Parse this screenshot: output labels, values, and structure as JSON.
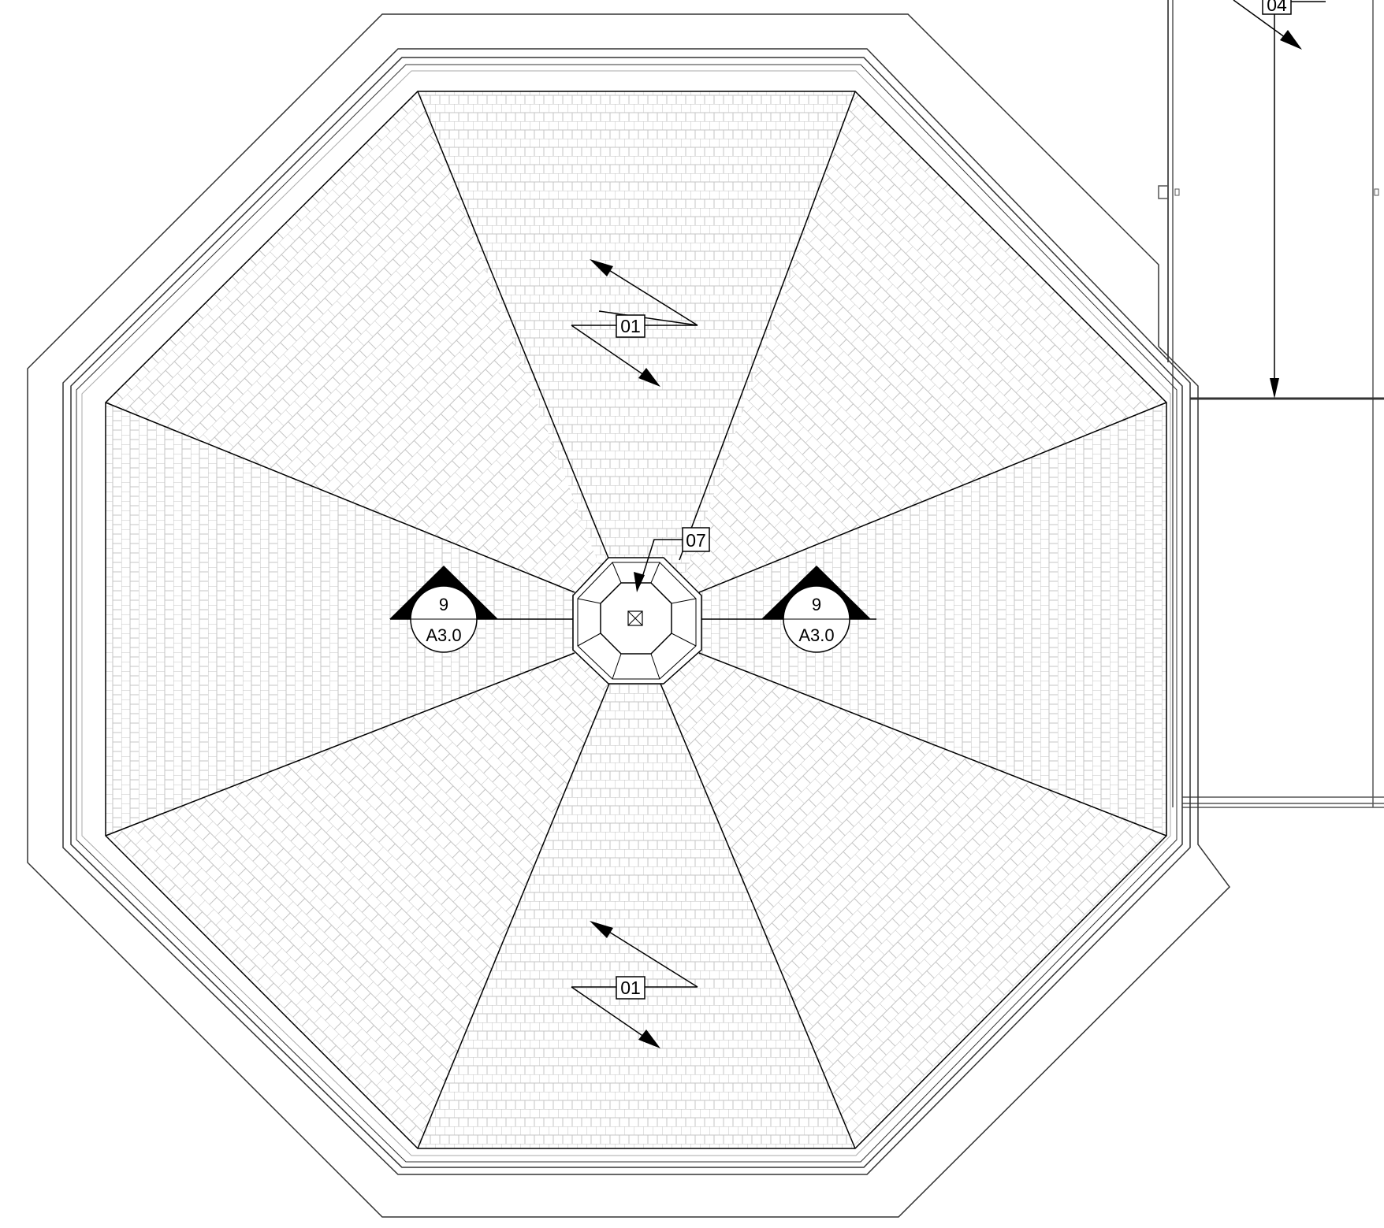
{
  "drawing": {
    "type": "octagonal roof plan",
    "roof_pattern": "shingle",
    "line_color": "#000000",
    "hatch_color": "#b8b8b8",
    "background": "#ffffff"
  },
  "keynotes": {
    "top_slope": "01",
    "bottom_slope": "01",
    "center_cupola": "07",
    "adjacent_roof": "04"
  },
  "section_markers": {
    "left": {
      "number": "9",
      "sheet": "A3.0"
    },
    "right": {
      "number": "9",
      "sheet": "A3.0"
    }
  }
}
